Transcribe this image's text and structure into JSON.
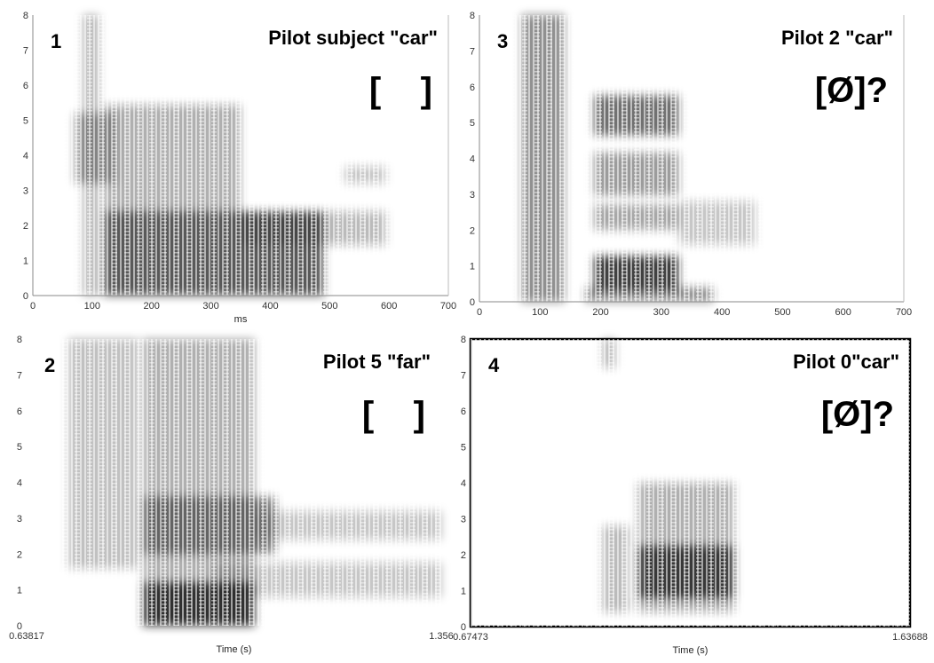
{
  "panels": [
    {
      "number": "1",
      "title": "Pilot subject \"car\"",
      "transcription": "[    ]",
      "y_ticks": [
        "0",
        "1",
        "2",
        "3",
        "4",
        "5",
        "6",
        "7",
        "8"
      ],
      "x_ticks": [
        "0",
        "100",
        "200",
        "300",
        "400",
        "500",
        "600",
        "700"
      ],
      "x_label": "ms"
    },
    {
      "number": "3",
      "title": "Pilot 2 \"car\"",
      "transcription": "[Ø]?",
      "y_ticks": [
        "0",
        "1",
        "2",
        "3",
        "4",
        "5",
        "6",
        "7",
        "8"
      ],
      "x_ticks": [
        "0",
        "100",
        "200",
        "300",
        "400",
        "500",
        "600",
        "700"
      ]
    },
    {
      "number": "2",
      "title": "Pilot 5 \"far\"",
      "transcription": "[    ]",
      "y_ticks": [
        "0",
        "1",
        "2",
        "3",
        "4",
        "5",
        "6",
        "7",
        "8"
      ],
      "x_ticks": [
        "0.63817",
        "1.356"
      ],
      "x_label": "Time (s)"
    },
    {
      "number": "4",
      "title": "Pilot 0\"car\"",
      "transcription": "[Ø]?",
      "y_ticks": [
        "0",
        "1",
        "2",
        "3",
        "4",
        "5",
        "6",
        "7",
        "8"
      ],
      "x_ticks": [
        "0.67473",
        "1.63688"
      ],
      "x_label": "Time (s)"
    }
  ]
}
